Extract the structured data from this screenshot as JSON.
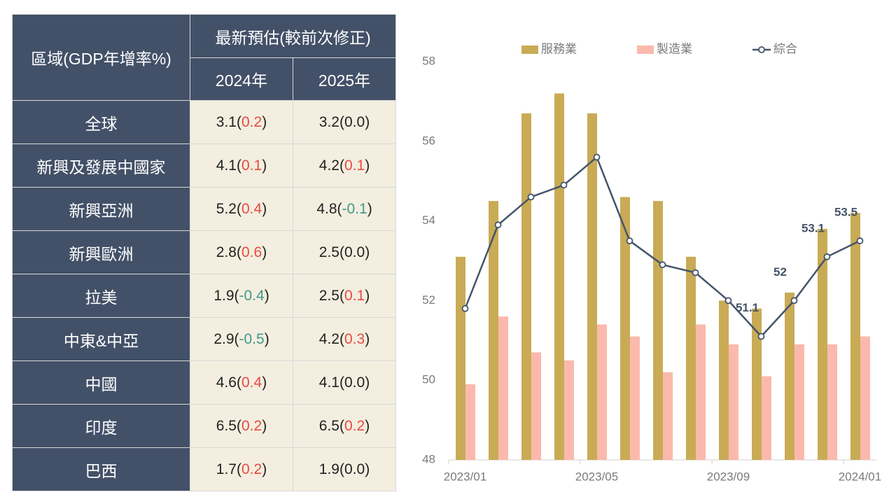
{
  "table": {
    "header": {
      "region": "區域(GDP年增率%)",
      "group": "最新預估(較前次修正)",
      "years": [
        "2024年",
        "2025年"
      ]
    },
    "rows": [
      {
        "name": "全球",
        "cells": [
          {
            "parts": [
              "3.1(",
              "0.2",
              ")"
            ],
            "tone": "up"
          },
          {
            "parts": [
              "3.2(",
              "0.0",
              ")"
            ],
            "tone": "flat"
          }
        ]
      },
      {
        "name": "新興及發展中國家",
        "cells": [
          {
            "parts": [
              "4.1(",
              "0.1",
              ")"
            ],
            "tone": "up"
          },
          {
            "parts": [
              "4.2(",
              "0.1",
              ")"
            ],
            "tone": "up"
          }
        ]
      },
      {
        "name": "新興亞洲",
        "cells": [
          {
            "parts": [
              "5.2(",
              "0.4",
              ")"
            ],
            "tone": "up"
          },
          {
            "parts": [
              "4.8(",
              "-0.1",
              ")"
            ],
            "tone": "down"
          }
        ]
      },
      {
        "name": "新興歐洲",
        "cells": [
          {
            "parts": [
              "2.8(",
              "0.6",
              ")"
            ],
            "tone": "up"
          },
          {
            "parts": [
              "2.5(",
              "0.0",
              ")"
            ],
            "tone": "flat"
          }
        ]
      },
      {
        "name": "拉美",
        "cells": [
          {
            "parts": [
              "1.9(",
              "-0.4",
              ")"
            ],
            "tone": "down"
          },
          {
            "parts": [
              "2.5(",
              "0.1",
              ")"
            ],
            "tone": "up"
          }
        ]
      },
      {
        "name": "中東&中亞",
        "cells": [
          {
            "parts": [
              "2.9(",
              "-0.5",
              ")"
            ],
            "tone": "down"
          },
          {
            "parts": [
              "4.2(",
              "0.3",
              ")"
            ],
            "tone": "up"
          }
        ]
      },
      {
        "name": "中國",
        "cells": [
          {
            "parts": [
              "4.6(",
              "0.4",
              ")"
            ],
            "tone": "up"
          },
          {
            "parts": [
              "4.1(",
              "0.0",
              ")"
            ],
            "tone": "flat"
          }
        ]
      },
      {
        "name": "印度",
        "cells": [
          {
            "parts": [
              "6.5(",
              "0.2",
              ")"
            ],
            "tone": "up"
          },
          {
            "parts": [
              "6.5(",
              "0.2",
              ")"
            ],
            "tone": "up"
          }
        ]
      },
      {
        "name": "巴西",
        "cells": [
          {
            "parts": [
              "1.7(",
              "0.2",
              ")"
            ],
            "tone": "up"
          },
          {
            "parts": [
              "1.9(",
              "0.0",
              ")"
            ],
            "tone": "flat"
          }
        ]
      }
    ]
  },
  "chart_data": {
    "type": "bar-line",
    "categories": [
      "2023/01",
      null,
      null,
      null,
      "2023/05",
      null,
      null,
      null,
      "2023/09",
      null,
      null,
      null,
      "2024/01"
    ],
    "series": [
      {
        "name": "服務業",
        "type": "bar",
        "color": "#c9ab55",
        "values": [
          53.1,
          54.5,
          56.7,
          57.2,
          56.7,
          54.6,
          54.5,
          53.1,
          52.0,
          51.8,
          52.2,
          53.8,
          54.2
        ]
      },
      {
        "name": "製造業",
        "type": "bar",
        "color": "#fbb9ad",
        "values": [
          49.9,
          51.6,
          50.7,
          50.5,
          51.4,
          51.1,
          50.2,
          51.4,
          50.9,
          50.1,
          50.9,
          50.9,
          51.1
        ]
      },
      {
        "name": "綜合",
        "type": "line",
        "color": "#44546a",
        "values": [
          51.8,
          53.9,
          54.6,
          54.9,
          55.6,
          53.5,
          52.9,
          52.7,
          52.0,
          51.1,
          52.0,
          53.1,
          53.5
        ],
        "value_labels": [
          null,
          null,
          null,
          null,
          null,
          null,
          null,
          null,
          null,
          "51.1",
          "52",
          "53.1",
          "53.5"
        ]
      }
    ],
    "ylim": [
      48,
      58
    ],
    "yticks": [
      48,
      50,
      52,
      54,
      56,
      58
    ],
    "legend": "top"
  }
}
